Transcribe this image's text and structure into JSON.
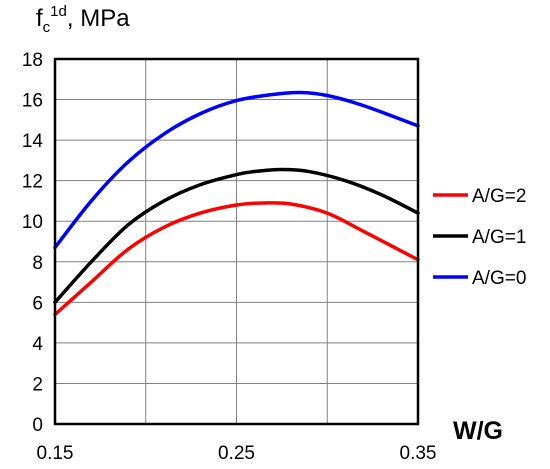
{
  "chart_data": {
    "type": "line",
    "title": "",
    "ylabel": {
      "base": "f",
      "subscript": "c",
      "superscript": "1d",
      "suffix": ", MPa"
    },
    "xlabel": "W/G",
    "xlim": [
      0.15,
      0.35
    ],
    "ylim": [
      0,
      18
    ],
    "x_ticks": [
      0.15,
      0.25,
      0.35
    ],
    "x_tick_labels": [
      "0.15",
      "0.25",
      "0.35"
    ],
    "x_grid": [
      0.15,
      0.2,
      0.25,
      0.3,
      0.35
    ],
    "y_ticks": [
      0,
      2,
      4,
      6,
      8,
      10,
      12,
      14,
      16,
      18
    ],
    "y_tick_labels": [
      "0",
      "2",
      "4",
      "6",
      "8",
      "10",
      "12",
      "14",
      "16",
      "18"
    ],
    "grid": true,
    "legend_position": "right",
    "series": [
      {
        "name": "A/G=2",
        "color": "#ff0000",
        "x": [
          0.15,
          0.17,
          0.19,
          0.21,
          0.23,
          0.25,
          0.265,
          0.28,
          0.3,
          0.32,
          0.35
        ],
        "y": [
          5.4,
          7.0,
          8.6,
          9.7,
          10.4,
          10.8,
          10.9,
          10.85,
          10.4,
          9.5,
          8.1
        ]
      },
      {
        "name": "A/G=1",
        "color": "#000000",
        "x": [
          0.15,
          0.17,
          0.19,
          0.21,
          0.23,
          0.25,
          0.26,
          0.275,
          0.29,
          0.31,
          0.33,
          0.35
        ],
        "y": [
          6.0,
          8.0,
          9.8,
          11.0,
          11.8,
          12.3,
          12.45,
          12.55,
          12.45,
          12.0,
          11.3,
          10.4
        ]
      },
      {
        "name": "A/G=0",
        "color": "#0000ff",
        "x": [
          0.15,
          0.17,
          0.19,
          0.21,
          0.23,
          0.25,
          0.27,
          0.285,
          0.3,
          0.32,
          0.35
        ],
        "y": [
          8.7,
          11.0,
          12.9,
          14.3,
          15.3,
          15.95,
          16.25,
          16.35,
          16.2,
          15.7,
          14.7
        ]
      }
    ]
  }
}
